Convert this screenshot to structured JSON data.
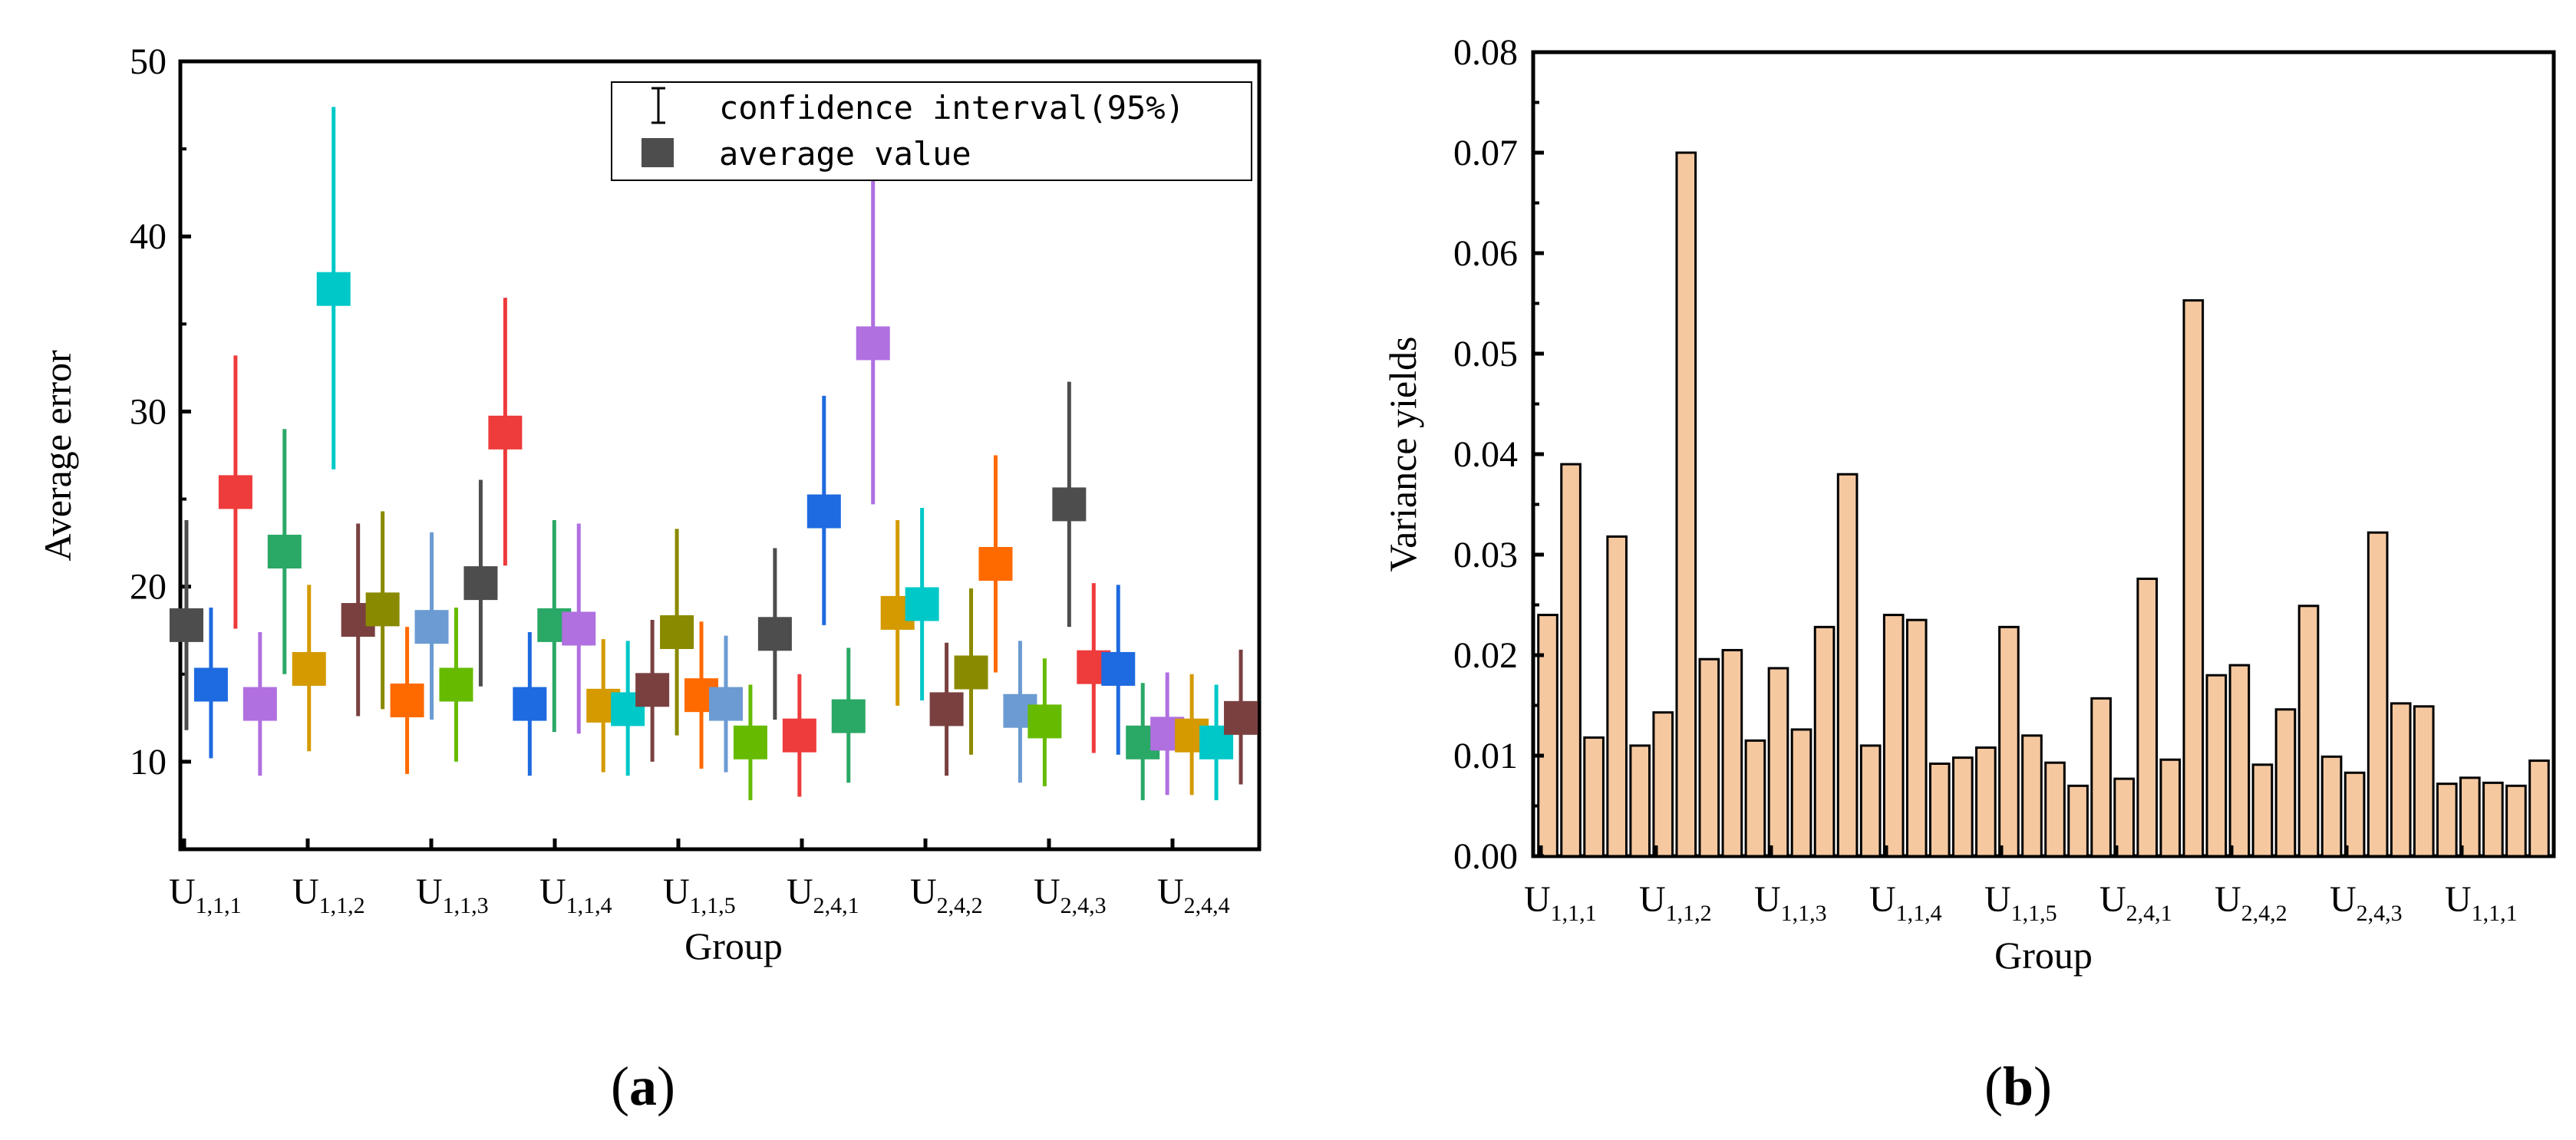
{
  "chart_data": [
    {
      "type": "scatter",
      "panel_label": "a",
      "xlabel": "Group",
      "ylabel": "Average error",
      "ylim": [
        5,
        50
      ],
      "yticks": [
        "10",
        "20",
        "30",
        "40",
        "50"
      ],
      "ytick_values": [
        10,
        20,
        30,
        40,
        50
      ],
      "legend": [
        "confidence interval(95%)",
        "average value"
      ],
      "xtick_labels": [
        {
          "main": "U",
          "sub": "1,1,1"
        },
        {
          "main": "U",
          "sub": "1,1,2"
        },
        {
          "main": "U",
          "sub": "1,1,3"
        },
        {
          "main": "U",
          "sub": "1,1,4"
        },
        {
          "main": "U",
          "sub": "1,1,5"
        },
        {
          "main": "U",
          "sub": "2,4,1"
        },
        {
          "main": "U",
          "sub": "2,4,2"
        },
        {
          "main": "U",
          "sub": "2,4,3"
        },
        {
          "main": "U",
          "sub": "2,4,4"
        }
      ],
      "points": [
        {
          "x": 0.1,
          "mean": 17.8,
          "low": 11.8,
          "high": 23.8,
          "color": "#4d4d4d"
        },
        {
          "x": 0.5,
          "mean": 14.4,
          "low": 10.2,
          "high": 18.8,
          "color": "#1e6ae0"
        },
        {
          "x": 0.9,
          "mean": 25.4,
          "low": 17.6,
          "high": 33.2,
          "color": "#ee3b3b"
        },
        {
          "x": 1.3,
          "mean": 13.3,
          "low": 9.2,
          "high": 17.4,
          "color": "#b070e0"
        },
        {
          "x": 1.7,
          "mean": 22.0,
          "low": 15.0,
          "high": 29.0,
          "color": "#2aa866"
        },
        {
          "x": 2.1,
          "mean": 15.3,
          "low": 10.6,
          "high": 20.1,
          "color": "#d49a00"
        },
        {
          "x": 2.5,
          "mean": 37.0,
          "low": 26.7,
          "high": 47.4,
          "color": "#00c8c8"
        },
        {
          "x": 2.9,
          "mean": 18.1,
          "low": 12.6,
          "high": 23.6,
          "color": "#7a4040"
        },
        {
          "x": 3.3,
          "mean": 18.7,
          "low": 13.0,
          "high": 24.3,
          "color": "#8a8a00"
        },
        {
          "x": 3.7,
          "mean": 13.5,
          "low": 9.3,
          "high": 17.7,
          "color": "#ff6a00"
        },
        {
          "x": 4.1,
          "mean": 17.7,
          "low": 12.4,
          "high": 23.1,
          "color": "#6b9bd2"
        },
        {
          "x": 4.5,
          "mean": 14.4,
          "low": 10.0,
          "high": 18.8,
          "color": "#66bb00"
        },
        {
          "x": 4.9,
          "mean": 20.2,
          "low": 14.3,
          "high": 26.1,
          "color": "#4d4d4d"
        },
        {
          "x": 5.3,
          "mean": 28.8,
          "low": 21.2,
          "high": 36.5,
          "color": "#ee3b3b"
        },
        {
          "x": 5.7,
          "mean": 13.3,
          "low": 9.2,
          "high": 17.4,
          "color": "#1e6ae0"
        },
        {
          "x": 6.1,
          "mean": 17.8,
          "low": 11.7,
          "high": 23.8,
          "color": "#2aa866"
        },
        {
          "x": 6.5,
          "mean": 17.6,
          "low": 11.6,
          "high": 23.6,
          "color": "#b070e0"
        },
        {
          "x": 6.9,
          "mean": 13.2,
          "low": 9.4,
          "high": 17.0,
          "color": "#d49a00"
        },
        {
          "x": 7.3,
          "mean": 13.0,
          "low": 9.2,
          "high": 16.9,
          "color": "#00c8c8"
        },
        {
          "x": 7.7,
          "mean": 14.1,
          "low": 10.0,
          "high": 18.1,
          "color": "#7a4040"
        },
        {
          "x": 8.1,
          "mean": 17.4,
          "low": 11.5,
          "high": 23.3,
          "color": "#8a8a00"
        },
        {
          "x": 8.5,
          "mean": 13.8,
          "low": 9.6,
          "high": 18.0,
          "color": "#ff6a00"
        },
        {
          "x": 8.9,
          "mean": 13.3,
          "low": 9.4,
          "high": 17.2,
          "color": "#6b9bd2"
        },
        {
          "x": 9.3,
          "mean": 11.1,
          "low": 7.8,
          "high": 14.4,
          "color": "#66bb00"
        },
        {
          "x": 9.7,
          "mean": 17.3,
          "low": 12.4,
          "high": 22.2,
          "color": "#4d4d4d"
        },
        {
          "x": 10.1,
          "mean": 11.5,
          "low": 8.0,
          "high": 15.0,
          "color": "#ee3b3b"
        },
        {
          "x": 10.5,
          "mean": 24.3,
          "low": 17.8,
          "high": 30.9,
          "color": "#1e6ae0"
        },
        {
          "x": 10.9,
          "mean": 12.6,
          "low": 8.8,
          "high": 16.5,
          "color": "#2aa866"
        },
        {
          "x": 11.3,
          "mean": 33.9,
          "low": 24.7,
          "high": 43.2,
          "color": "#b070e0"
        },
        {
          "x": 11.7,
          "mean": 18.5,
          "low": 13.2,
          "high": 23.8,
          "color": "#d49a00"
        },
        {
          "x": 12.1,
          "mean": 19.0,
          "low": 13.5,
          "high": 24.5,
          "color": "#00c8c8"
        },
        {
          "x": 12.5,
          "mean": 13.0,
          "low": 9.2,
          "high": 16.8,
          "color": "#7a4040"
        },
        {
          "x": 12.9,
          "mean": 15.1,
          "low": 10.4,
          "high": 19.9,
          "color": "#8a8a00"
        },
        {
          "x": 13.3,
          "mean": 21.3,
          "low": 15.1,
          "high": 27.5,
          "color": "#ff6a00"
        },
        {
          "x": 13.7,
          "mean": 12.9,
          "low": 8.8,
          "high": 16.9,
          "color": "#6b9bd2"
        },
        {
          "x": 14.1,
          "mean": 12.3,
          "low": 8.6,
          "high": 15.9,
          "color": "#66bb00"
        },
        {
          "x": 14.5,
          "mean": 24.7,
          "low": 17.7,
          "high": 31.7,
          "color": "#4d4d4d"
        },
        {
          "x": 14.9,
          "mean": 15.4,
          "low": 10.5,
          "high": 20.2,
          "color": "#ee3b3b"
        },
        {
          "x": 15.3,
          "mean": 15.3,
          "low": 10.4,
          "high": 20.1,
          "color": "#1e6ae0"
        },
        {
          "x": 15.7,
          "mean": 11.1,
          "low": 7.8,
          "high": 14.5,
          "color": "#2aa866"
        },
        {
          "x": 16.1,
          "mean": 11.6,
          "low": 8.1,
          "high": 15.1,
          "color": "#b070e0"
        },
        {
          "x": 16.5,
          "mean": 11.5,
          "low": 8.1,
          "high": 15.0,
          "color": "#d49a00"
        },
        {
          "x": 16.9,
          "mean": 11.1,
          "low": 7.8,
          "high": 14.4,
          "color": "#00c8c8"
        },
        {
          "x": 17.3,
          "mean": 12.5,
          "low": 8.7,
          "high": 16.4,
          "color": "#7a4040"
        }
      ],
      "xlim": [
        0,
        17.6
      ]
    },
    {
      "type": "bar",
      "panel_label": "b",
      "xlabel": "Group",
      "ylabel": "Variance yields",
      "ylim": [
        0,
        0.08
      ],
      "yticks": [
        "0.00",
        "0.01",
        "0.02",
        "0.03",
        "0.04",
        "0.05",
        "0.06",
        "0.07",
        "0.08"
      ],
      "ytick_values": [
        0,
        0.01,
        0.02,
        0.03,
        0.04,
        0.05,
        0.06,
        0.07,
        0.08
      ],
      "bar_color": "#f5c8a0",
      "xtick_labels": [
        {
          "main": "U",
          "sub": "1,1,1"
        },
        {
          "main": "U",
          "sub": "1,1,2"
        },
        {
          "main": "U",
          "sub": "1,1,3"
        },
        {
          "main": "U",
          "sub": "1,1,4"
        },
        {
          "main": "U",
          "sub": "1,1,5"
        },
        {
          "main": "U",
          "sub": "2,4,1"
        },
        {
          "main": "U",
          "sub": "2,4,2"
        },
        {
          "main": "U",
          "sub": "2,4,3"
        },
        {
          "main": "U",
          "sub": "1,1,1"
        }
      ],
      "values": [
        0.024,
        0.039,
        0.0118,
        0.0318,
        0.011,
        0.0143,
        0.07,
        0.0196,
        0.0205,
        0.0115,
        0.0187,
        0.0126,
        0.0228,
        0.038,
        0.011,
        0.024,
        0.0235,
        0.0092,
        0.0098,
        0.0108,
        0.0228,
        0.012,
        0.0093,
        0.007,
        0.0157,
        0.0077,
        0.0276,
        0.0096,
        0.0553,
        0.018,
        0.019,
        0.0091,
        0.0146,
        0.0249,
        0.0099,
        0.0083,
        0.0322,
        0.0152,
        0.0149,
        0.0072,
        0.0078,
        0.0073,
        0.007,
        0.0095
      ]
    }
  ]
}
